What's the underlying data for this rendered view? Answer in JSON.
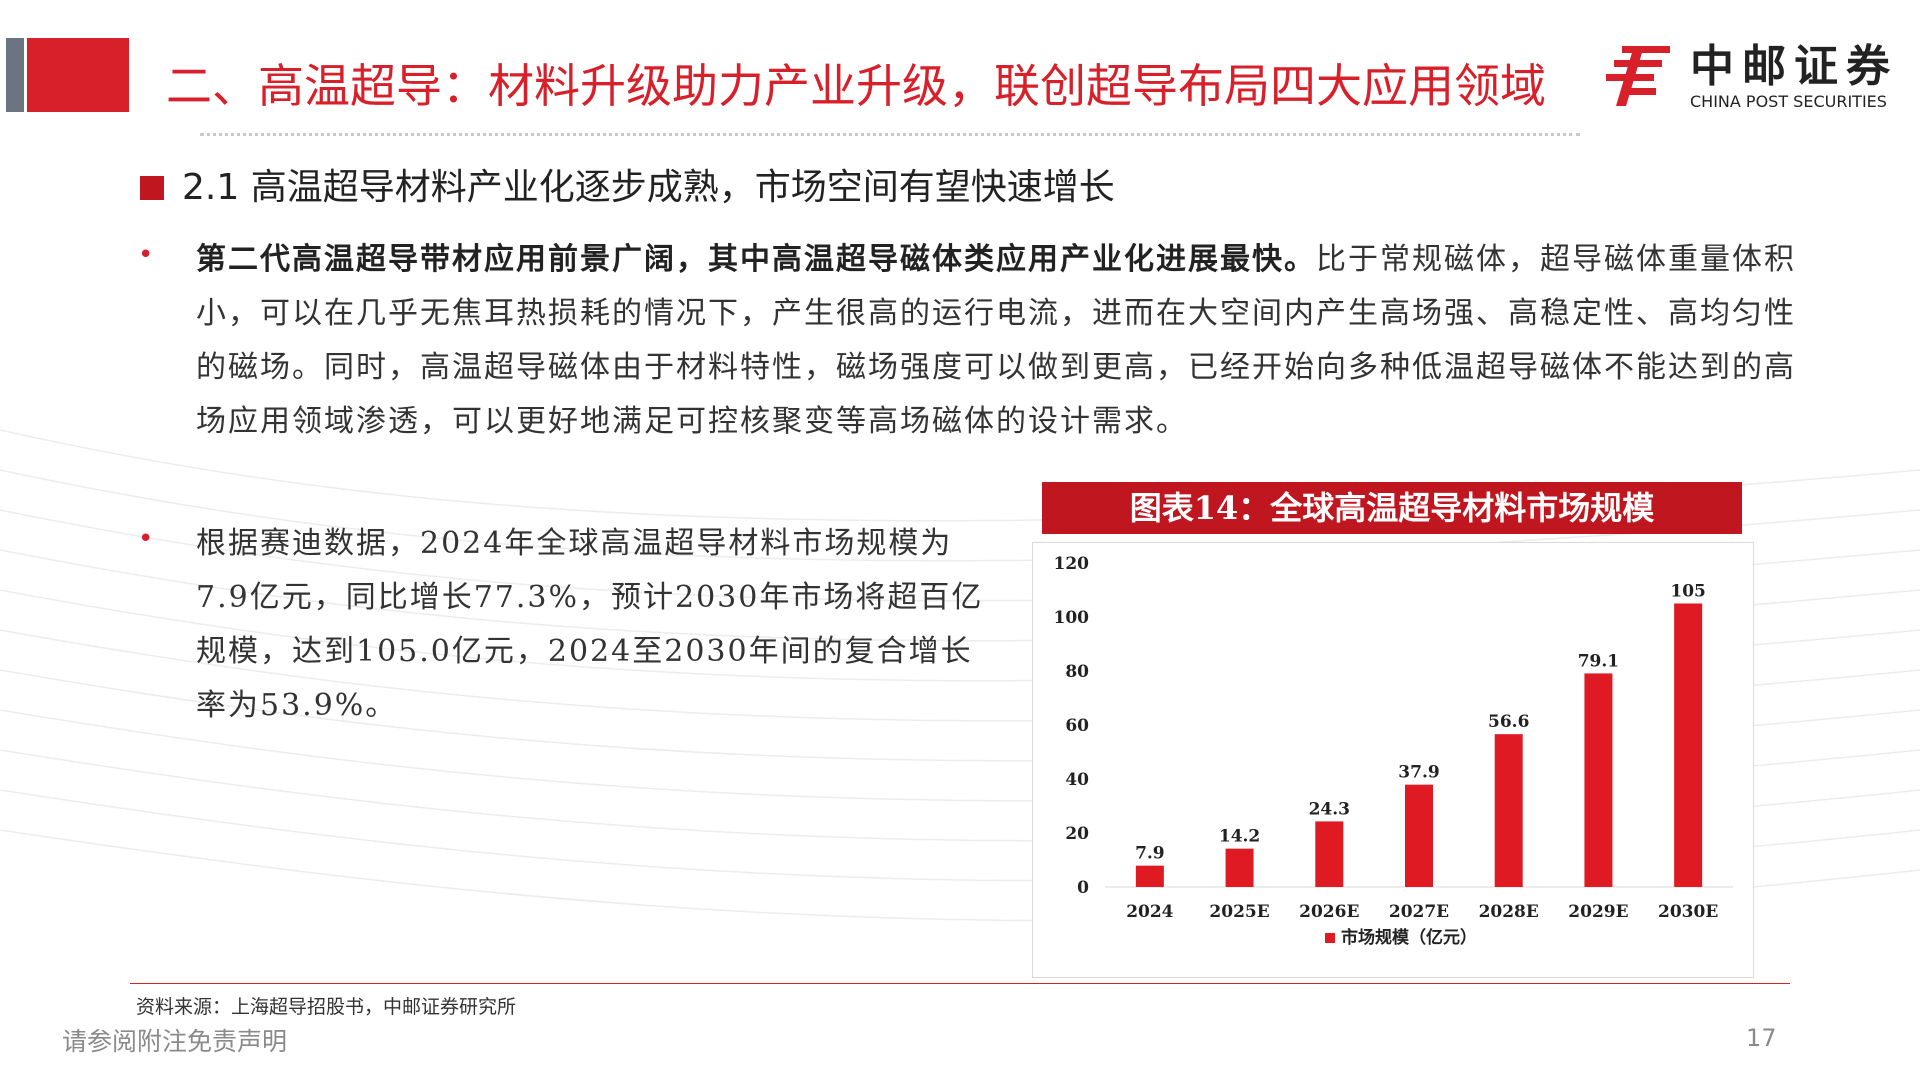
{
  "header": {
    "title": "二、高温超导：材料升级助力产业升级，联创超导布局四大应用领域",
    "logo_cn": "中邮证券",
    "logo_en": "CHINA POST SECURITIES"
  },
  "section": {
    "title": "2.1  高温超导材料产业化逐步成熟，市场空间有望快速增长"
  },
  "bullets": [
    {
      "marker": "•",
      "bold": "第二代高温超导带材应用前景广阔，其中高温超导磁体类应用产业化进展最快。",
      "text": "比于常规磁体，超导磁体重量体积小，可以在几乎无焦耳热损耗的情况下，产生很高的运行电流，进而在大空间内产生高场强、高稳定性、高均匀性的磁场。同时，高温超导磁体由于材料特性，磁场强度可以做到更高，已经开始向多种低温超导磁体不能达到的高场应用领域渗透，可以更好地满足可控核聚变等高场磁体的设计需求。"
    },
    {
      "marker": "•",
      "text": "根据赛迪数据，2024年全球高温超导材料市场规模为7.9亿元，同比增长77.3%，预计2030年市场将超百亿规模，达到105.0亿元，2024至2030年间的复合增长率为53.9%。"
    }
  ],
  "chart_data": {
    "type": "bar",
    "title": "图表14：全球高温超导材料市场规模",
    "categories": [
      "2024",
      "2025E",
      "2026E",
      "2027E",
      "2028E",
      "2029E",
      "2030E"
    ],
    "series": [
      {
        "name": "市场规模（亿元）",
        "values": [
          7.9,
          14.2,
          24.3,
          37.9,
          56.6,
          79.1,
          105
        ],
        "labels": [
          "7.9",
          "14.2",
          "24.3",
          "37.9",
          "56.6",
          "79.1",
          "105"
        ]
      }
    ],
    "ylim": [
      0,
      120
    ],
    "yticks": [
      0,
      20,
      40,
      60,
      80,
      100,
      120
    ],
    "grid": false,
    "legend_position": "bottom",
    "bar_color": "#e01a22"
  },
  "footer": {
    "source": "资料来源：上海超导招股书，中邮证券研究所",
    "disclaimer": "请参阅附注免责声明",
    "page": "17"
  },
  "colors": {
    "brand_red": "#d7202a",
    "dark_grey": "#6b7480"
  }
}
